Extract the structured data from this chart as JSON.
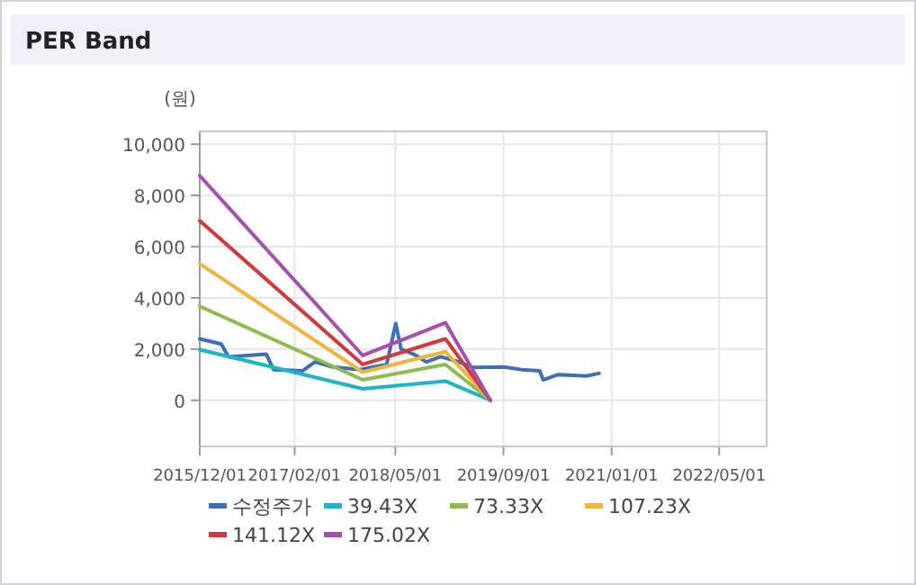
{
  "chart_data": {
    "type": "line",
    "title": "PER Band",
    "ylabel": "(원)",
    "xlim": [
      "2015-12-01",
      "2022-12-01"
    ],
    "xticks": [
      {
        "value": "2015-12-01",
        "label": "2015/12/01"
      },
      {
        "value": "2017-02-01",
        "label": "2017/02/01"
      },
      {
        "value": "2018-05-01",
        "label": "2018/05/01"
      },
      {
        "value": "2019-09-01",
        "label": "2019/09/01"
      },
      {
        "value": "2021-01-01",
        "label": "2021/01/01"
      },
      {
        "value": "2022-05-01",
        "label": "2022/05/01"
      }
    ],
    "ylim": [
      -1800,
      10500
    ],
    "yticks": [
      0,
      {
        "value": 2000,
        "label": "2,000"
      },
      {
        "value": 4000,
        "label": "4,000"
      },
      {
        "value": 6000,
        "label": "6,000"
      },
      {
        "value": 8000,
        "label": "8,000"
      },
      {
        "value": 10000,
        "label": "10,000"
      }
    ],
    "grid": true,
    "legend": "bottom",
    "marker": "none",
    "line_style": "solid",
    "series": [
      {
        "name": "수정주가",
        "color": "#3d6fb6",
        "x": [
          "2015-12-01",
          "2016-03-07",
          "2016-04-09",
          "2016-09-26",
          "2016-10-29",
          "2017-03-08",
          "2017-05-04",
          "2017-07-24",
          "2017-11-22",
          "2018-03-23",
          "2018-05-03",
          "2018-05-27",
          "2018-07-23",
          "2018-09-18",
          "2018-11-22",
          "2019-02-11",
          "2019-04-17",
          "2019-09-02",
          "2019-11-22",
          "2020-02-11",
          "2020-02-27",
          "2020-05-02",
          "2020-09-09",
          "2020-11-05"
        ],
        "values": [
          2400,
          2200,
          1700,
          1800,
          1200,
          1150,
          1500,
          1300,
          1200,
          1400,
          3000,
          2000,
          1800,
          1500,
          1700,
          1500,
          1280,
          1300,
          1200,
          1150,
          800,
          1000,
          950,
          1050
        ]
      },
      {
        "name": "39.43X",
        "color": "#1fb5c8",
        "x": [
          "2015-12-01",
          "2017-12-05",
          "2018-12-13",
          "2019-07-04"
        ],
        "values": [
          1980,
          450,
          750,
          0
        ]
      },
      {
        "name": "73.33X",
        "color": "#8dbd4e",
        "x": [
          "2015-12-01",
          "2017-12-05",
          "2018-12-13",
          "2019-07-04"
        ],
        "values": [
          3670,
          800,
          1400,
          0
        ]
      },
      {
        "name": "107.23X",
        "color": "#f2b53c",
        "x": [
          "2015-12-01",
          "2017-12-05",
          "2018-12-13",
          "2019-07-04"
        ],
        "values": [
          5330,
          1100,
          1900,
          0
        ]
      },
      {
        "name": "141.12X",
        "color": "#d03a3a",
        "x": [
          "2015-12-01",
          "2017-12-05",
          "2018-12-13",
          "2019-07-04"
        ],
        "values": [
          7010,
          1400,
          2400,
          0
        ]
      },
      {
        "name": "175.02X",
        "color": "#a64fb0",
        "x": [
          "2015-12-01",
          "2017-12-05",
          "2018-12-13",
          "2019-07-04"
        ],
        "values": [
          8770,
          1750,
          3030,
          0
        ]
      }
    ]
  }
}
